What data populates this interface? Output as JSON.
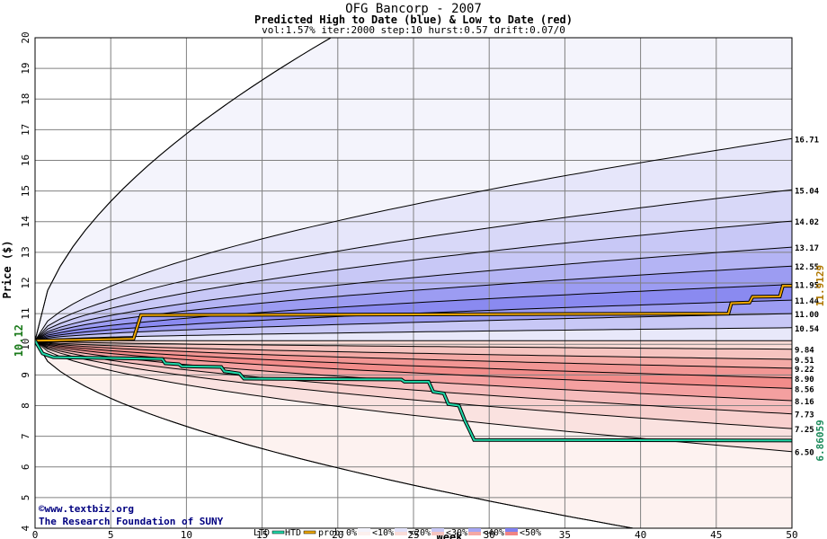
{
  "chart_data": {
    "type": "line",
    "title": "OFG Bancorp - 2007",
    "subtitle": "Predicted High to Date (blue) &  Low to Date (red)",
    "params": "vol:1.57% iter:2000 step:10 hurst:0.57 drift:0.07/0",
    "xlabel": "Week",
    "ylabel": "Price ($)",
    "xlim": [
      0,
      50
    ],
    "ylim": [
      4,
      20
    ],
    "xticks": [
      0,
      5,
      10,
      15,
      20,
      25,
      30,
      35,
      40,
      45,
      50
    ],
    "yticks": [
      4,
      5,
      6,
      7,
      8,
      9,
      10,
      11,
      12,
      13,
      14,
      15,
      16,
      17,
      18,
      19,
      20
    ],
    "grid": true,
    "start_price": 10.12,
    "start_label": "10.12",
    "blue_band_ends": [
      16.71,
      15.04,
      14.02,
      13.17,
      12.55,
      11.95,
      11.44,
      11.0,
      10.54
    ],
    "blue_band_labels": [
      "16.71",
      "15.04",
      "14.02",
      "13.17",
      "12.55",
      "11.95",
      "11.44",
      "11.00",
      "10.54"
    ],
    "red_band_ends": [
      9.84,
      9.51,
      9.22,
      8.9,
      8.56,
      8.16,
      7.73,
      7.25,
      6.5
    ],
    "red_band_labels": [
      "9.84",
      "9.51",
      "9.22",
      "8.90",
      "8.56",
      "8.16",
      "7.73",
      "7.25",
      "6.50"
    ],
    "outer_high_end": 20.0,
    "outer_low_end": 4.0,
    "htd_final_label": "11.9129",
    "ltd_final_label": "6.86059",
    "series": [
      {
        "name": "HTD",
        "color": "#f0a800",
        "x": [
          0,
          6.5,
          7,
          45.8,
          46,
          47.2,
          47.4,
          49.2,
          49.4,
          50
        ],
        "y": [
          10.12,
          10.18,
          10.95,
          11.0,
          11.34,
          11.36,
          11.55,
          11.56,
          11.91,
          11.91
        ]
      },
      {
        "name": "LTD",
        "color": "#20d8a8",
        "x": [
          0,
          0.5,
          1.2,
          2,
          5,
          8.4,
          8.6,
          9.5,
          9.7,
          12.3,
          12.5,
          13.5,
          13.8,
          24.2,
          24.4,
          26,
          26.3,
          27,
          27.3,
          28,
          28.4,
          28.7,
          29,
          50
        ],
        "y": [
          10.12,
          9.7,
          9.58,
          9.57,
          9.55,
          9.52,
          9.38,
          9.35,
          9.28,
          9.26,
          9.12,
          9.05,
          8.88,
          8.85,
          8.78,
          8.78,
          8.45,
          8.4,
          8.05,
          8.0,
          7.5,
          7.2,
          6.88,
          6.86
        ]
      }
    ],
    "legend": {
      "ltd": "LTD",
      "htd": "HTD",
      "prob": "prob:",
      "levels": [
        "0%",
        "<10%",
        "<20%",
        "<30%",
        "<40%",
        "<50%"
      ],
      "level_colors_blue": [
        "#f4f4fc",
        "#e2e2fa",
        "#c8c8f6",
        "#a6a6f4",
        "#8080f0"
      ],
      "level_colors_red": [
        "#fcf0ee",
        "#fadcd8",
        "#f6c4c0",
        "#f4a8a4",
        "#f08484"
      ]
    }
  },
  "watermark": {
    "line1": "www.textbiz.org",
    "line2": "The Research Foundation of SUNY"
  }
}
